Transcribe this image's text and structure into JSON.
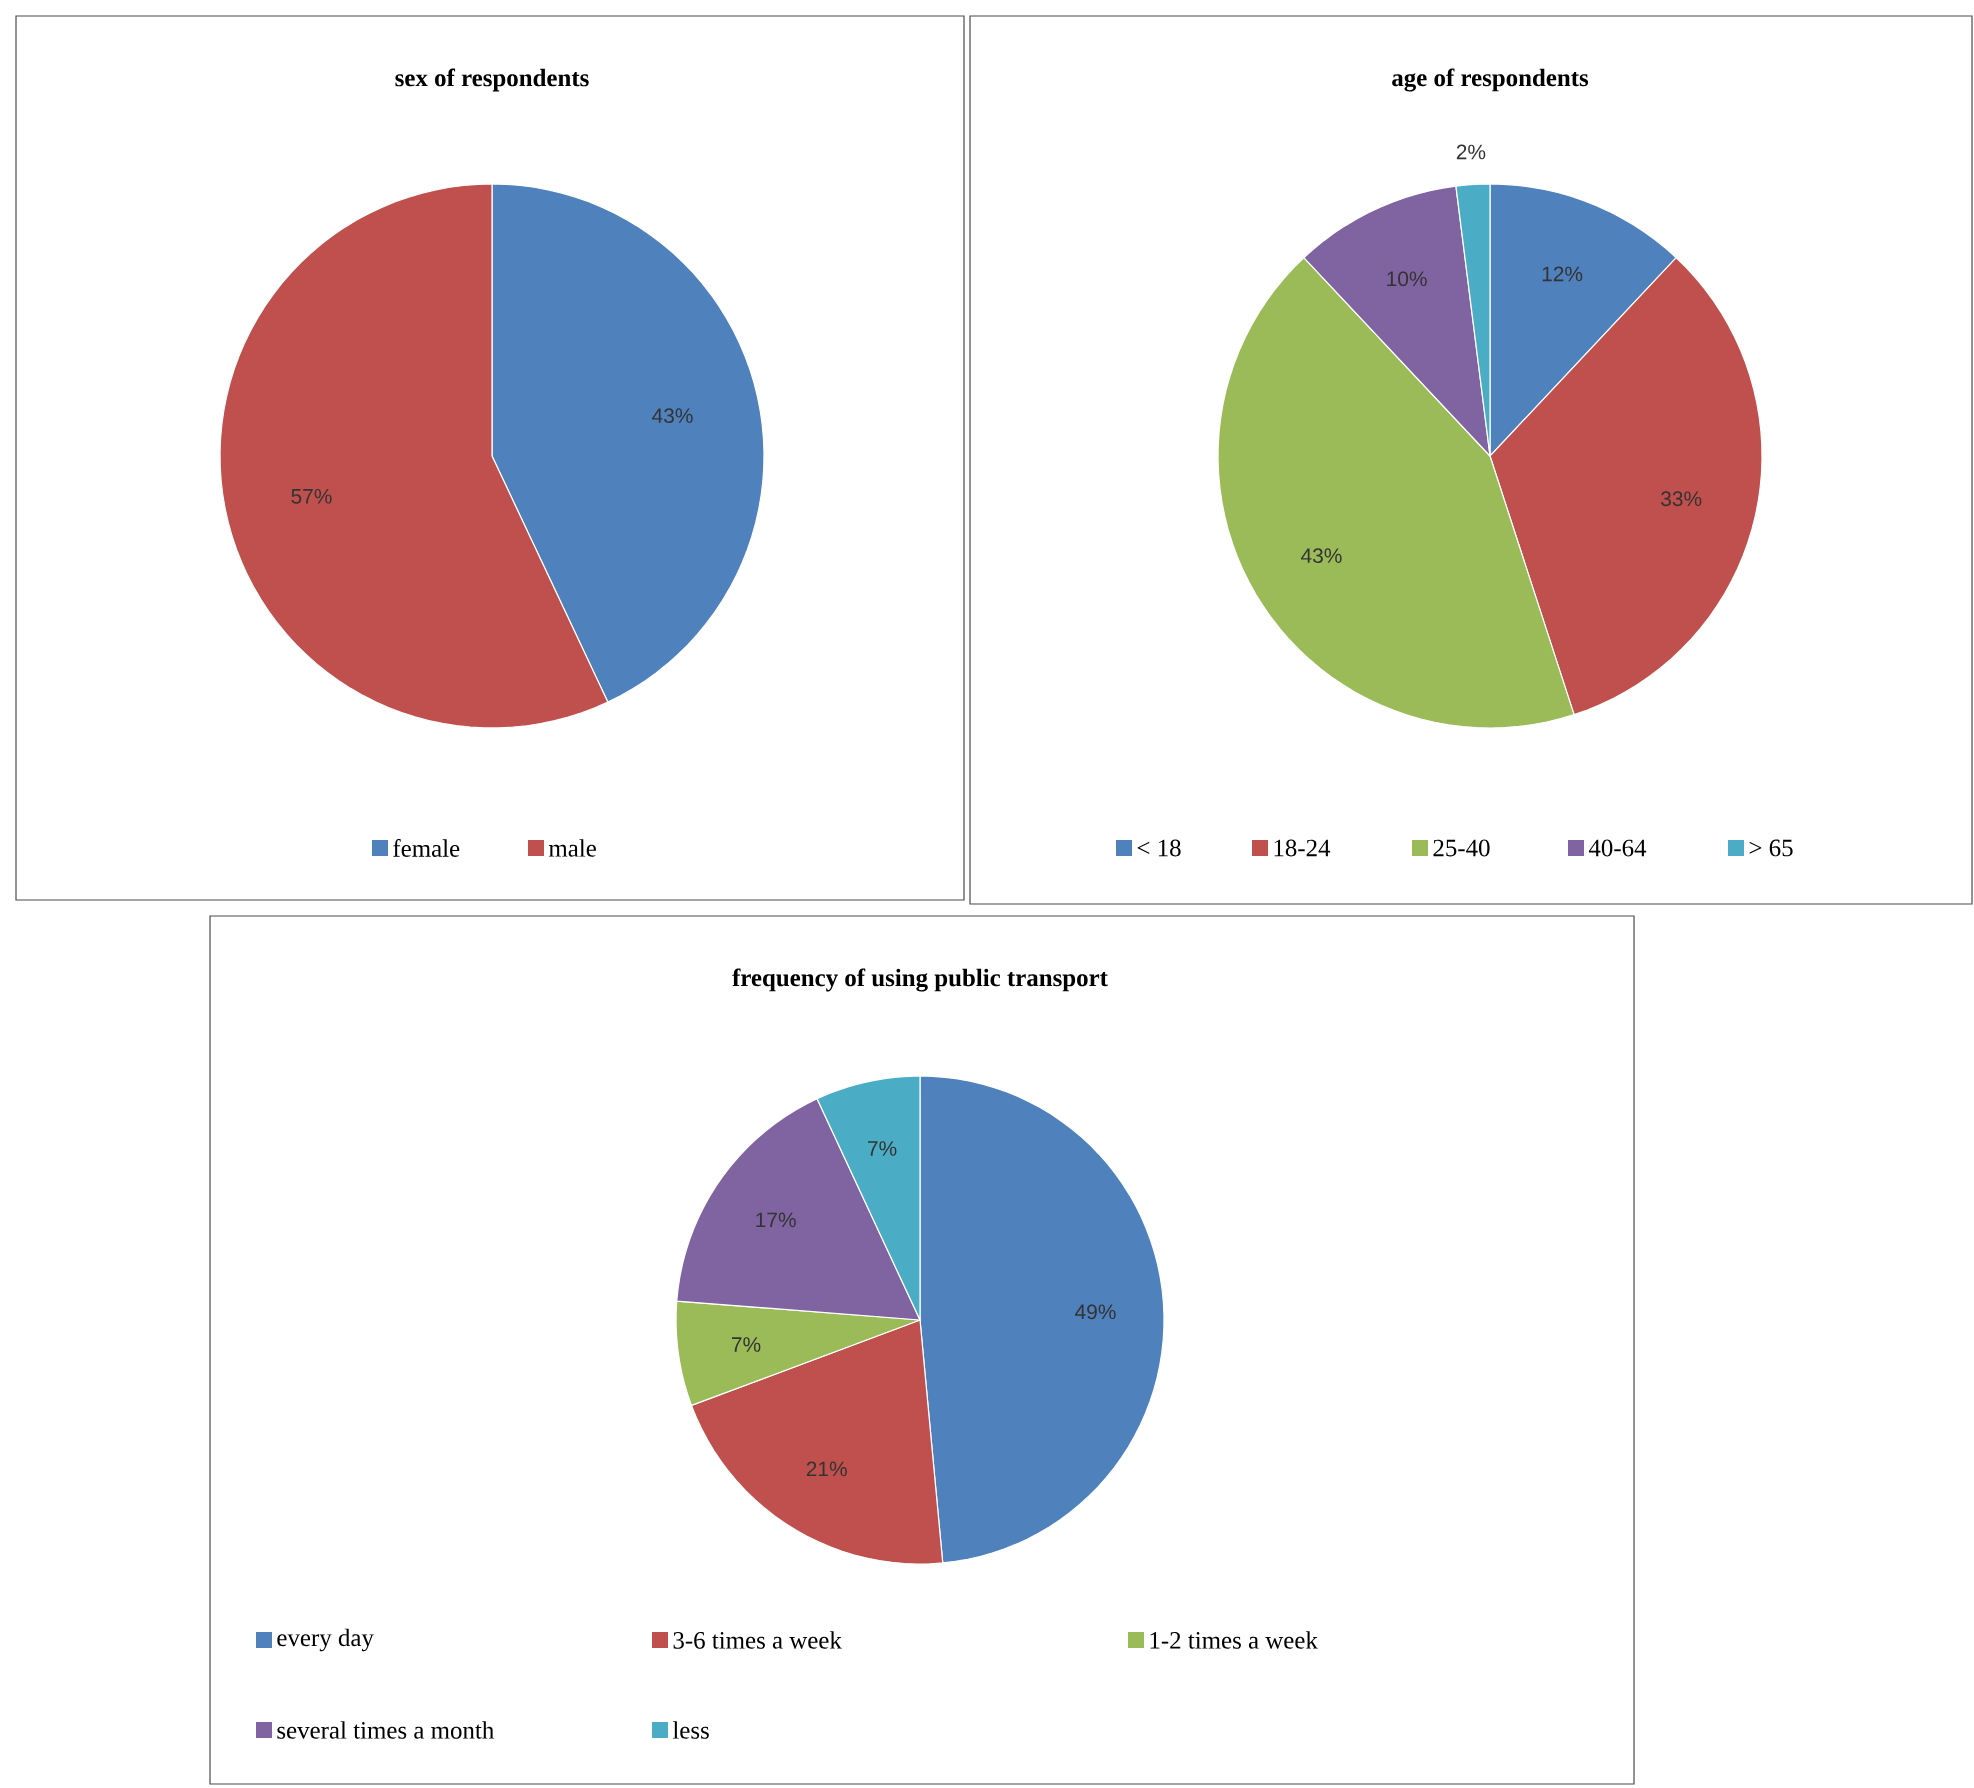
{
  "chart_data": [
    {
      "type": "pie",
      "title": "sex of respondents",
      "categories": [
        "female",
        "male"
      ],
      "values": [
        43,
        57
      ],
      "value_labels": [
        "43%",
        "57%"
      ],
      "colors": [
        "#4f81bd",
        "#c0504d"
      ],
      "legend": "bottom"
    },
    {
      "type": "pie",
      "title": "age of respondents",
      "categories": [
        "< 18",
        "18-24",
        "25-40",
        "40-64",
        "> 65"
      ],
      "values": [
        12,
        33,
        43,
        10,
        2
      ],
      "value_labels": [
        "12%",
        "33%",
        "43%",
        "10%",
        "2%"
      ],
      "colors": [
        "#4f81bd",
        "#c0504d",
        "#9bbb59",
        "#8064a2",
        "#4bacc6"
      ],
      "legend": "bottom"
    },
    {
      "type": "pie",
      "title": "frequency of using public transport",
      "categories": [
        "every day",
        "3-6 times a week",
        "1-2 times a week",
        "several times a month",
        "less"
      ],
      "values": [
        49,
        21,
        7,
        17,
        7
      ],
      "value_labels": [
        "49%",
        "21%",
        "7%",
        "17%",
        "7%"
      ],
      "colors": [
        "#4f81bd",
        "#c0504d",
        "#9bbb59",
        "#8064a2",
        "#4bacc6"
      ],
      "legend": "bottom"
    }
  ]
}
